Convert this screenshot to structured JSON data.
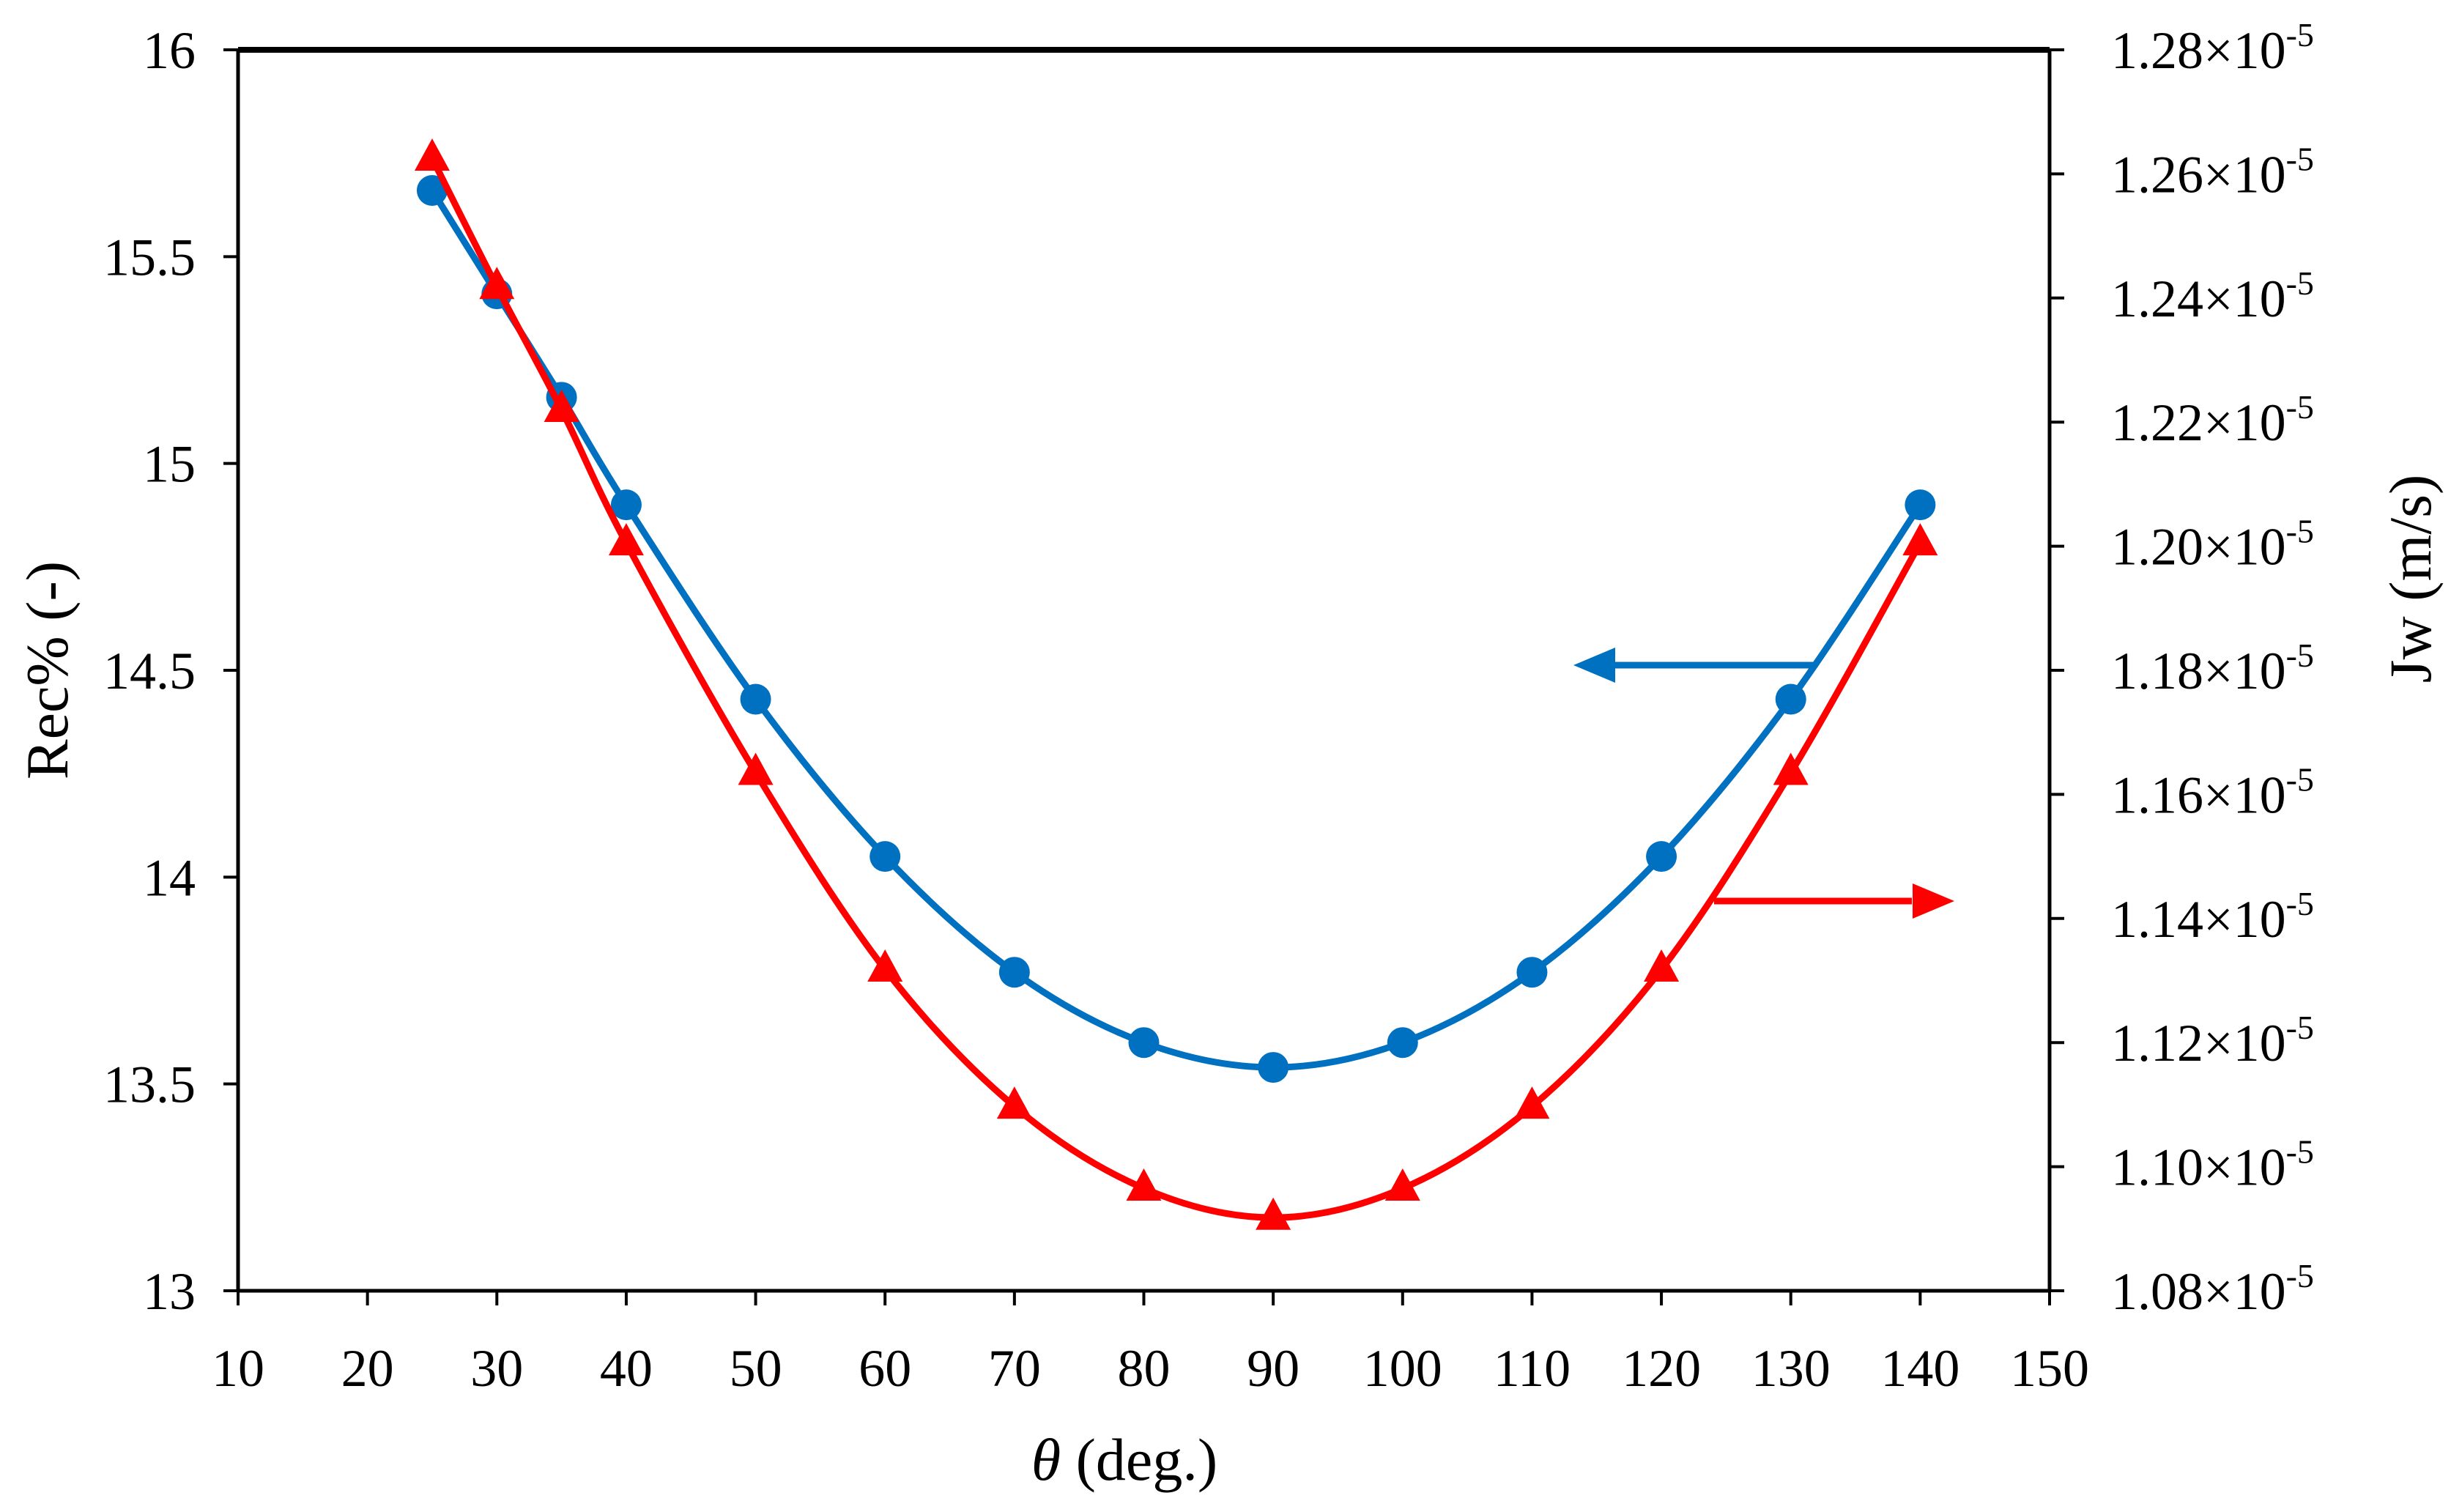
{
  "chart_data": {
    "type": "line",
    "title": "",
    "xlabel": {
      "symbol": "θ",
      "rest": " (deg.)"
    },
    "ylabel_left": "Rec% (-)",
    "ylabel_right": "Jw (m/s)",
    "xlim": [
      10,
      150
    ],
    "xticks": [
      10,
      20,
      30,
      40,
      50,
      60,
      70,
      80,
      90,
      100,
      110,
      120,
      130,
      140,
      150
    ],
    "ylim_left": [
      13,
      16
    ],
    "yticks_left": [
      "13",
      "13.5",
      "14",
      "14.5",
      "15",
      "15.5",
      "16"
    ],
    "ylim_right": [
      1.08e-05,
      1.28e-05
    ],
    "yticks_right": [
      {
        "mantissa": "1.08",
        "exponent": "-5"
      },
      {
        "mantissa": "1.10",
        "exponent": "-5"
      },
      {
        "mantissa": "1.12",
        "exponent": "-5"
      },
      {
        "mantissa": "1.14",
        "exponent": "-5"
      },
      {
        "mantissa": "1.16",
        "exponent": "-5"
      },
      {
        "mantissa": "1.18",
        "exponent": "-5"
      },
      {
        "mantissa": "1.20",
        "exponent": "-5"
      },
      {
        "mantissa": "1.22",
        "exponent": "-5"
      },
      {
        "mantissa": "1.24",
        "exponent": "-5"
      },
      {
        "mantissa": "1.26",
        "exponent": "-5"
      },
      {
        "mantissa": "1.28",
        "exponent": "-5"
      }
    ],
    "grid": false,
    "series": [
      {
        "name": "Rec%",
        "axis": "left",
        "color": "#0070C0",
        "marker": "circle",
        "x": [
          25,
          30,
          35,
          40,
          50,
          60,
          70,
          80,
          90,
          100,
          110,
          120,
          130,
          140
        ],
        "y": [
          15.66,
          15.41,
          15.16,
          14.9,
          14.43,
          14.05,
          13.77,
          13.6,
          13.54,
          13.6,
          13.77,
          14.05,
          14.43,
          14.9
        ]
      },
      {
        "name": "Jw",
        "axis": "right",
        "color": "#FF0000",
        "marker": "triangle",
        "x": [
          25,
          30,
          35,
          40,
          50,
          60,
          70,
          80,
          90,
          100,
          110,
          120,
          130,
          140
        ],
        "y": [
          1.2625e-05,
          1.2418e-05,
          1.222e-05,
          1.2005e-05,
          1.1635e-05,
          1.1318e-05,
          1.1097e-05,
          1.0965e-05,
          1.0918e-05,
          1.0965e-05,
          1.1097e-05,
          1.1318e-05,
          1.1635e-05,
          1.2005e-05
        ]
      }
    ],
    "annotations": [
      {
        "kind": "arrow",
        "series": "Rec%",
        "direction": "left",
        "meaning": "points to left axis"
      },
      {
        "kind": "arrow",
        "series": "Jw",
        "direction": "right",
        "meaning": "points to right axis"
      }
    ]
  }
}
